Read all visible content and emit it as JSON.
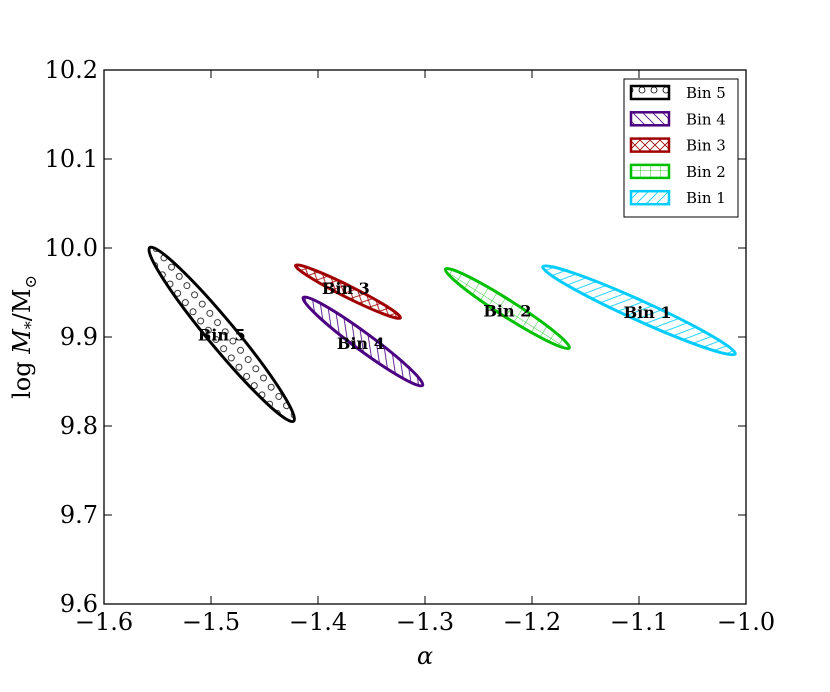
{
  "chart_data": {
    "type": "scatter",
    "title": "",
    "xlabel": "α",
    "ylabel_parts": {
      "prefix": "log ",
      "var": "M",
      "sub": "*",
      "sep": "/M",
      "sub2": "⊙"
    },
    "xlim": [
      -1.6,
      -1.0
    ],
    "ylim": [
      9.6,
      10.2
    ],
    "xticks": [
      -1.6,
      -1.5,
      -1.4,
      -1.3,
      -1.2,
      -1.1,
      -1.0
    ],
    "yticks": [
      9.6,
      9.7,
      9.8,
      9.9,
      10.0,
      10.1,
      10.2
    ],
    "xtick_labels": [
      "−1.6",
      "−1.5",
      "−1.4",
      "−1.3",
      "−1.2",
      "−1.1",
      "−1.0"
    ],
    "ytick_labels": [
      "9.6",
      "9.7",
      "9.8",
      "9.9",
      "10.0",
      "10.1",
      "10.2"
    ],
    "grid": false,
    "legend_position": "top-right",
    "series": [
      {
        "name": "Bin 5",
        "label": "Bin 5",
        "center": [
          -1.49,
          9.903
        ],
        "x_half_range": 0.068,
        "y_half_range": 0.098,
        "color": "#000000",
        "hatch": "circles",
        "label_at": [
          -1.49,
          9.903
        ]
      },
      {
        "name": "Bin 4",
        "label": "Bin 4",
        "center": [
          -1.358,
          9.895
        ],
        "x_half_range": 0.056,
        "y_half_range": 0.05,
        "color": "#4b0082",
        "hatch": "diagonal-back",
        "label_at": [
          -1.36,
          9.893
        ]
      },
      {
        "name": "Bin 3",
        "label": "Bin 3",
        "center": [
          -1.372,
          9.951
        ],
        "x_half_range": 0.049,
        "y_half_range": 0.03,
        "color": "#a00000",
        "hatch": "cross-diagonal",
        "label_at": [
          -1.374,
          9.955
        ]
      },
      {
        "name": "Bin 2",
        "label": "Bin 2",
        "center": [
          -1.223,
          9.932
        ],
        "x_half_range": 0.058,
        "y_half_range": 0.045,
        "color": "#00c000",
        "hatch": "grid",
        "label_at": [
          -1.223,
          9.93
        ]
      },
      {
        "name": "Bin 1",
        "label": "Bin 1",
        "center": [
          -1.1,
          9.93
        ],
        "x_half_range": 0.09,
        "y_half_range": 0.05,
        "color": "#00ccff",
        "hatch": "diagonal-forward",
        "label_at": [
          -1.092,
          9.928
        ]
      }
    ],
    "legend_order": [
      "Bin 5",
      "Bin 4",
      "Bin 3",
      "Bin 2",
      "Bin 1"
    ]
  }
}
